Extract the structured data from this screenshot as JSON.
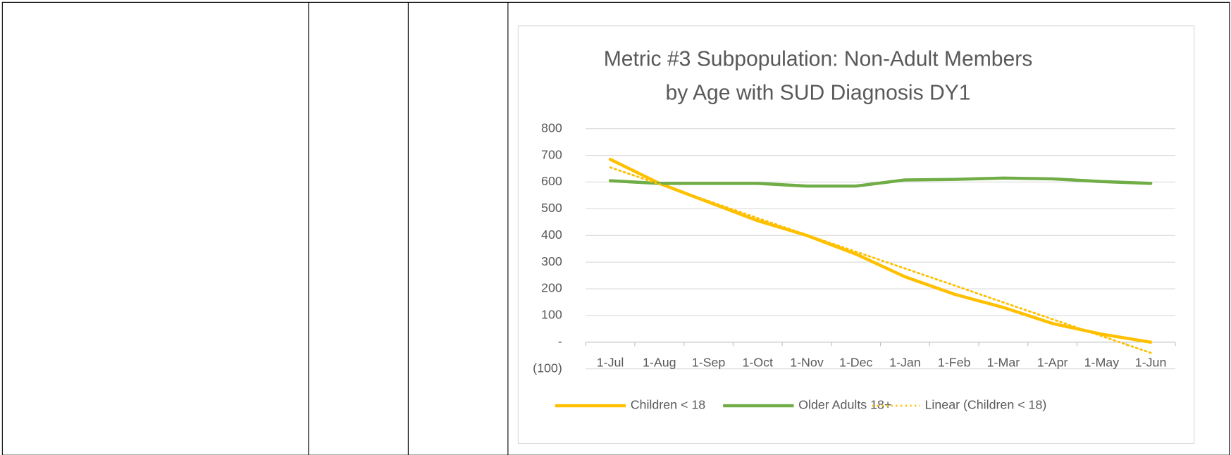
{
  "chart_data": {
    "type": "line",
    "title": [
      "Metric #3 Subpopulation: Non-Adult Members",
      "by Age with SUD Diagnosis DY1"
    ],
    "categories": [
      "1-Jul",
      "1-Aug",
      "1-Sep",
      "1-Oct",
      "1-Nov",
      "1-Dec",
      "1-Jan",
      "1-Feb",
      "1-Mar",
      "1-Apr",
      "1-May",
      "1-Jun"
    ],
    "series": [
      {
        "name": "Children < 18",
        "color": "#FFC000",
        "style": "solid",
        "values": [
          685,
          595,
          525,
          455,
          400,
          330,
          245,
          180,
          130,
          70,
          30,
          0
        ]
      },
      {
        "name": "Older Adults 18+",
        "color": "#70AD47",
        "style": "solid",
        "values": [
          605,
          595,
          595,
          595,
          585,
          585,
          608,
          610,
          615,
          612,
          602,
          595
        ]
      },
      {
        "name": "Linear (Children < 18)",
        "color": "#FFC000",
        "style": "dotted",
        "values": [
          655,
          592,
          529,
          465,
          402,
          339,
          276,
          213,
          149,
          86,
          23,
          -40
        ]
      }
    ],
    "ylim": [
      -100,
      800
    ],
    "yticks": [
      {
        "value": -100,
        "label": "(100)"
      },
      {
        "value": 0,
        "label": "-"
      },
      100,
      200,
      300,
      400,
      500,
      600,
      700,
      800
    ],
    "grid": true,
    "legend": "bottom"
  }
}
